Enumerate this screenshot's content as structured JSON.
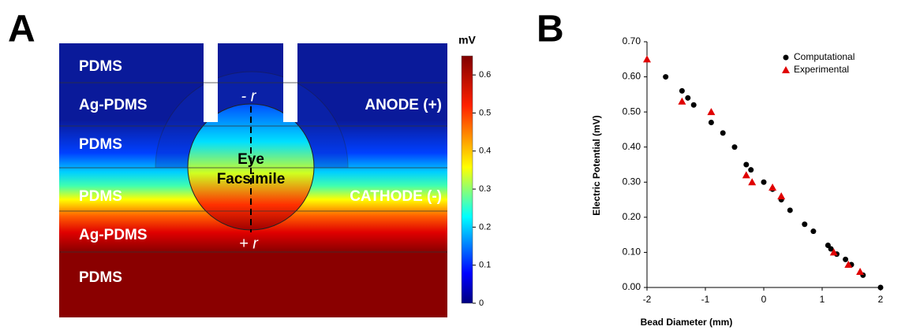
{
  "panel_a": {
    "label": "A",
    "regions": [
      "PDMS",
      "Ag-PDMS",
      "PDMS",
      "PDMS",
      "Ag-PDMS",
      "PDMS"
    ],
    "anode": "ANODE (+)",
    "cathode": "CATHODE (-)",
    "eye": [
      "Eye",
      "Facsimile"
    ],
    "minus_r": "- r",
    "plus_r": "+ r",
    "colorbar": {
      "unit": "mV",
      "lim": [
        0,
        0.65
      ],
      "ticks": [
        0,
        0.1,
        0.2,
        0.3,
        0.4,
        0.5,
        0.6
      ]
    }
  },
  "chart_data": {
    "type": "scatter",
    "panel_label": "B",
    "xlabel": "Bead Diameter (mm)",
    "ylabel": "Electric Potential (mV)",
    "xlim": [
      -2,
      2
    ],
    "xticks": [
      -2,
      -1,
      0,
      1,
      2
    ],
    "ylim": [
      0,
      0.7
    ],
    "yticks": [
      {
        "value": 0,
        "label": "0.00"
      },
      {
        "value": 0.1,
        "label": "0.10"
      },
      {
        "value": 0.2,
        "label": "0.20"
      },
      {
        "value": 0.3,
        "label": "0.30"
      },
      {
        "value": 0.4,
        "label": "0.40"
      },
      {
        "value": 0.5,
        "label": "0.50"
      },
      {
        "value": 0.6,
        "label": "0.60"
      },
      {
        "value": 0.7,
        "label": "0.70"
      }
    ],
    "legend": "upper right",
    "series": [
      {
        "name": "Computational",
        "color": "#000000",
        "marker": "circle",
        "x": [
          -1.68,
          -1.4,
          -1.3,
          -1.2,
          -0.9,
          -0.7,
          -0.5,
          -0.3,
          -0.22,
          0,
          0.15,
          0.3,
          0.45,
          0.7,
          0.85,
          1.1,
          1.15,
          1.25,
          1.4,
          1.5,
          1.7,
          2
        ],
        "values": [
          0.6,
          0.56,
          0.54,
          0.52,
          0.47,
          0.44,
          0.4,
          0.35,
          0.335,
          0.3,
          0.28,
          0.25,
          0.22,
          0.18,
          0.16,
          0.12,
          0.11,
          0.095,
          0.08,
          0.065,
          0.035,
          0
        ]
      },
      {
        "name": "Experimental",
        "color": "#e00000",
        "marker": "triangle",
        "x": [
          -2,
          -1.4,
          -0.9,
          -0.3,
          -0.2,
          0.15,
          0.3,
          1.2,
          1.45,
          1.65
        ],
        "values": [
          0.65,
          0.53,
          0.5,
          0.32,
          0.3,
          0.285,
          0.26,
          0.1,
          0.065,
          0.045
        ]
      }
    ]
  }
}
